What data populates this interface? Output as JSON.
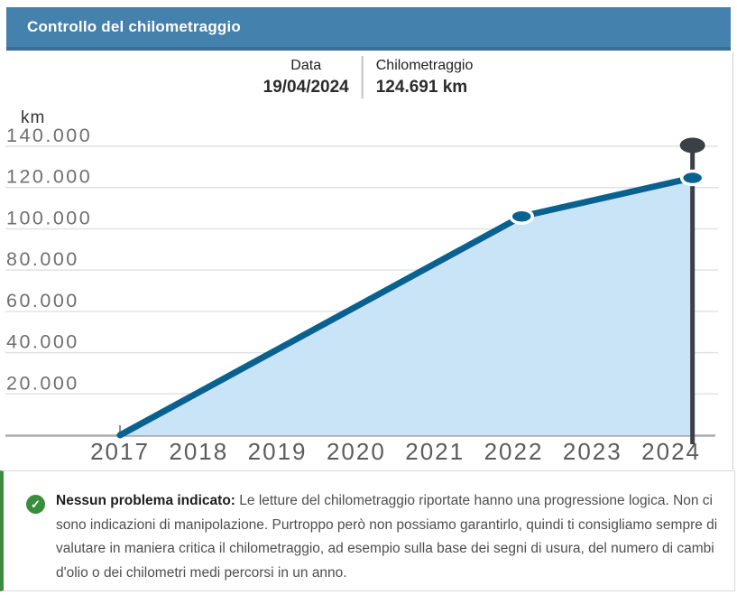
{
  "header": {
    "title": "Controllo del chilometraggio"
  },
  "tooltip": {
    "date_label": "Data",
    "date_value": "19/04/2024",
    "km_label": "Chilometraggio",
    "km_value": "124.691 km"
  },
  "chart_data": {
    "type": "area",
    "title": "Controllo del chilometraggio",
    "ylabel": "km",
    "unit_label": "km",
    "x_ticks": [
      "2017",
      "2018",
      "2019",
      "2020",
      "2021",
      "2022",
      "2023",
      "2024"
    ],
    "y_ticks": [
      "20.000",
      "40.000",
      "60.000",
      "80.000",
      "100.000",
      "120.000",
      "140.000"
    ],
    "y_tick_values": [
      20000,
      40000,
      60000,
      80000,
      100000,
      120000,
      140000
    ],
    "ylim": [
      0,
      140000
    ],
    "xlim": [
      2017,
      2024.3
    ],
    "grid": true,
    "legend": false,
    "points": [
      {
        "date": "2017",
        "x_year": 2017.0,
        "km": 0,
        "marker": false,
        "current": false
      },
      {
        "date": "2022",
        "x_year": 2022.1,
        "km": 106000,
        "marker": true,
        "current": false
      },
      {
        "date": "19/04/2024",
        "x_year": 2024.27,
        "km": 124691,
        "marker": true,
        "current": true
      }
    ],
    "colors": {
      "line": "#09618f",
      "area": "#c9e4f6",
      "pin": "#3b4046",
      "grid": "#e2e2e2",
      "axis_line": "#ababab",
      "tick": "#909090",
      "y_label": "#6f6f6f",
      "x_label": "#5c5c5c",
      "unit": "#333333"
    }
  },
  "footer": {
    "icon": "check-circle",
    "check_glyph": "✓",
    "status_bold": "Nessun problema indicato:",
    "status_text": "Le letture del chilometraggio riportate hanno una progressione logica. Non ci sono indicazioni di manipolazione. Purtroppo però non possiamo garantirlo, quindi ti consigliamo sempre di valutare in maniera critica il chilometraggio, ad esempio sulla base dei segni di usura, del numero di cambi d'olio o dei chilometri medi percorsi in un anno."
  },
  "colors": {
    "header_bg": "#4581ad",
    "header_border": "#3b6e94",
    "status_green": "#388e3c",
    "status_border_green": "#3d8b40"
  }
}
